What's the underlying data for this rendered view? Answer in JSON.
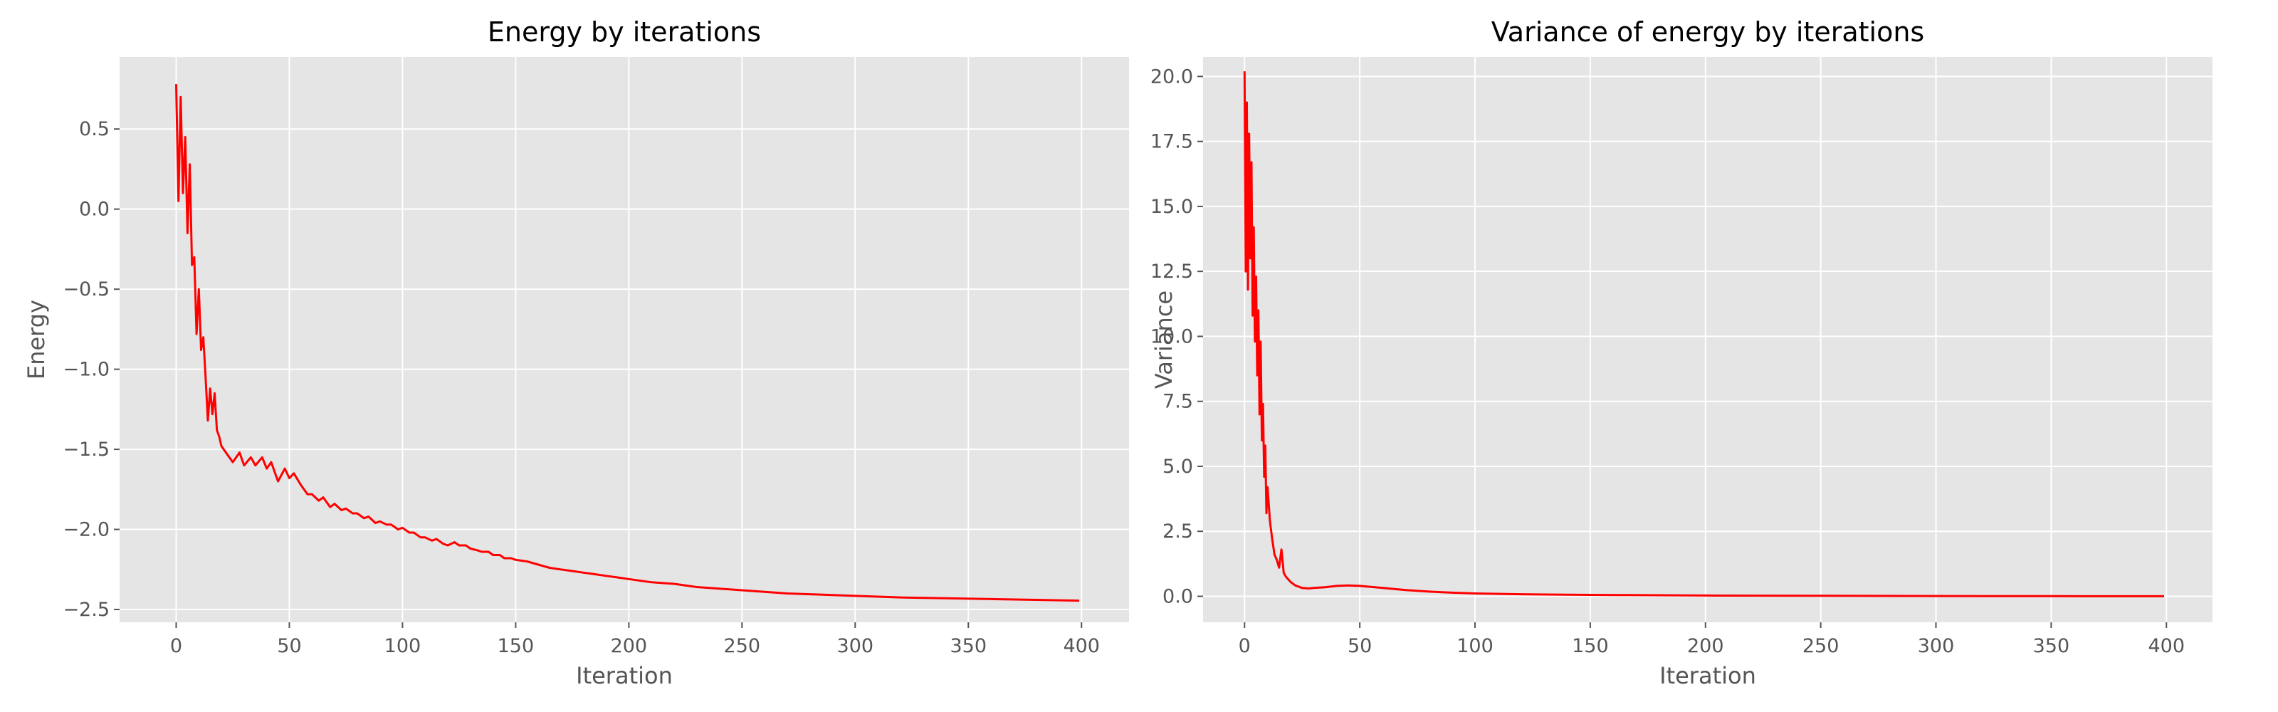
{
  "chart_data": [
    {
      "type": "line",
      "title": "Energy by iterations",
      "xlabel": "Iteration",
      "ylabel": "Energy",
      "xlim": [
        -25,
        421
      ],
      "ylim": [
        -2.58,
        0.95
      ],
      "xticks": [
        0,
        50,
        100,
        150,
        200,
        250,
        300,
        350,
        400
      ],
      "yticks": [
        -2.5,
        -2.0,
        -1.5,
        -1.0,
        -0.5,
        0.0,
        0.5
      ],
      "ytick_labels": [
        "−2.5",
        "−2.0",
        "−1.5",
        "−1.0",
        "−0.5",
        "0.0",
        "0.5"
      ],
      "grid": true,
      "series_color": "#ff0000",
      "series": [
        {
          "x": [
            0,
            1,
            2,
            3,
            4,
            5,
            6,
            7,
            8,
            9,
            10,
            11,
            12,
            13,
            14,
            15,
            16,
            17,
            18,
            19,
            20,
            22,
            25,
            28,
            30,
            33,
            35,
            38,
            40,
            42,
            45,
            48,
            50,
            52,
            55,
            58,
            60,
            63,
            65,
            68,
            70,
            73,
            75,
            78,
            80,
            83,
            85,
            88,
            90,
            93,
            95,
            98,
            100,
            103,
            105,
            108,
            110,
            113,
            115,
            118,
            120,
            123,
            125,
            128,
            130,
            133,
            135,
            138,
            140,
            143,
            145,
            148,
            150,
            155,
            160,
            165,
            170,
            175,
            180,
            185,
            190,
            195,
            200,
            210,
            220,
            230,
            240,
            250,
            260,
            270,
            280,
            290,
            300,
            320,
            340,
            360,
            380,
            399
          ],
          "y": [
            0.78,
            0.05,
            0.7,
            0.1,
            0.45,
            -0.15,
            0.28,
            -0.35,
            -0.3,
            -0.78,
            -0.5,
            -0.88,
            -0.8,
            -1.05,
            -1.32,
            -1.12,
            -1.28,
            -1.15,
            -1.38,
            -1.42,
            -1.48,
            -1.52,
            -1.58,
            -1.52,
            -1.6,
            -1.55,
            -1.6,
            -1.55,
            -1.62,
            -1.58,
            -1.7,
            -1.62,
            -1.68,
            -1.65,
            -1.72,
            -1.78,
            -1.78,
            -1.82,
            -1.8,
            -1.86,
            -1.84,
            -1.88,
            -1.87,
            -1.9,
            -1.9,
            -1.93,
            -1.92,
            -1.96,
            -1.95,
            -1.97,
            -1.97,
            -2.0,
            -1.99,
            -2.02,
            -2.02,
            -2.05,
            -2.05,
            -2.07,
            -2.06,
            -2.09,
            -2.1,
            -2.08,
            -2.1,
            -2.1,
            -2.12,
            -2.13,
            -2.14,
            -2.14,
            -2.16,
            -2.16,
            -2.18,
            -2.18,
            -2.19,
            -2.2,
            -2.22,
            -2.24,
            -2.25,
            -2.26,
            -2.27,
            -2.28,
            -2.29,
            -2.3,
            -2.31,
            -2.33,
            -2.34,
            -2.36,
            -2.37,
            -2.38,
            -2.39,
            -2.4,
            -2.405,
            -2.41,
            -2.415,
            -2.425,
            -2.43,
            -2.435,
            -2.44,
            -2.445
          ]
        }
      ]
    },
    {
      "type": "line",
      "title": "Variance of energy by iterations",
      "xlabel": "Iteration",
      "ylabel": "Variance",
      "xlim": [
        -18,
        420
      ],
      "ylim": [
        -1.0,
        20.75
      ],
      "xticks": [
        0,
        50,
        100,
        150,
        200,
        250,
        300,
        350,
        400
      ],
      "yticks": [
        0.0,
        2.5,
        5.0,
        7.5,
        10.0,
        12.5,
        15.0,
        17.5,
        20.0
      ],
      "ytick_labels": [
        "0.0",
        "2.5",
        "5.0",
        "7.5",
        "10.0",
        "12.5",
        "15.0",
        "17.5",
        "20.0"
      ],
      "grid": true,
      "series_color": "#ff0000",
      "series": [
        {
          "x": [
            0,
            0.5,
            1,
            1.5,
            2,
            2.5,
            3,
            3.5,
            4,
            4.5,
            5,
            5.5,
            6,
            6.5,
            7,
            7.5,
            8,
            8.5,
            9,
            9.5,
            10,
            11,
            12,
            13,
            14,
            15,
            16,
            17,
            18,
            20,
            22,
            25,
            28,
            30,
            35,
            40,
            45,
            50,
            60,
            70,
            80,
            90,
            100,
            120,
            140,
            160,
            180,
            200,
            250,
            300,
            350,
            399
          ],
          "y": [
            20.2,
            12.5,
            19.0,
            11.8,
            17.8,
            13.0,
            16.7,
            10.8,
            14.2,
            9.8,
            12.3,
            8.5,
            11.0,
            7.0,
            9.8,
            6.0,
            7.4,
            4.6,
            5.8,
            3.2,
            4.2,
            2.9,
            2.2,
            1.6,
            1.4,
            1.1,
            1.8,
            0.9,
            0.75,
            0.55,
            0.42,
            0.32,
            0.3,
            0.32,
            0.35,
            0.4,
            0.42,
            0.4,
            0.32,
            0.24,
            0.18,
            0.14,
            0.11,
            0.08,
            0.06,
            0.05,
            0.04,
            0.03,
            0.02,
            0.01,
            0.005,
            0.002
          ]
        }
      ]
    }
  ]
}
